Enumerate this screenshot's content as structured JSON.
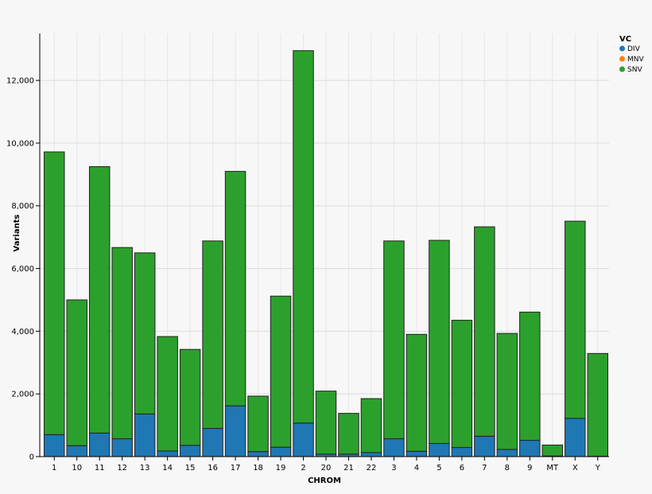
{
  "chart_data": {
    "type": "bar",
    "stacked": true,
    "title": "",
    "xlabel": "CHROM",
    "ylabel": "Variants",
    "ylim": [
      0,
      13500
    ],
    "yticks": [
      0,
      2000,
      4000,
      6000,
      8000,
      10000,
      12000
    ],
    "ytick_labels": [
      "0",
      "2,000",
      "4,000",
      "6,000",
      "8,000",
      "10,000",
      "12,000"
    ],
    "grid": true,
    "legend_position": "top-right",
    "legend_title": "VC",
    "categories": [
      "1",
      "10",
      "11",
      "12",
      "13",
      "14",
      "15",
      "16",
      "17",
      "18",
      "19",
      "2",
      "20",
      "21",
      "22",
      "3",
      "4",
      "5",
      "6",
      "7",
      "8",
      "9",
      "MT",
      "X",
      "Y"
    ],
    "series": [
      {
        "name": "DIV",
        "color": "#1f77b4",
        "values": [
          700,
          350,
          750,
          570,
          1360,
          180,
          360,
          900,
          1620,
          160,
          300,
          1070,
          80,
          80,
          130,
          570,
          170,
          420,
          290,
          650,
          230,
          520,
          20,
          1220,
          10
        ]
      },
      {
        "name": "MNV",
        "color": "#ff7f0e",
        "values": [
          0,
          0,
          0,
          0,
          0,
          0,
          0,
          0,
          0,
          0,
          0,
          0,
          0,
          0,
          0,
          0,
          0,
          0,
          0,
          0,
          0,
          0,
          0,
          0,
          0
        ]
      },
      {
        "name": "SNV",
        "color": "#2ca02c",
        "values": [
          9020,
          4650,
          8500,
          6100,
          5140,
          3650,
          3060,
          5980,
          7480,
          1770,
          4820,
          11880,
          2010,
          1300,
          1720,
          6310,
          3730,
          6480,
          4060,
          6680,
          3700,
          4090,
          350,
          6290,
          3280
        ]
      }
    ]
  }
}
